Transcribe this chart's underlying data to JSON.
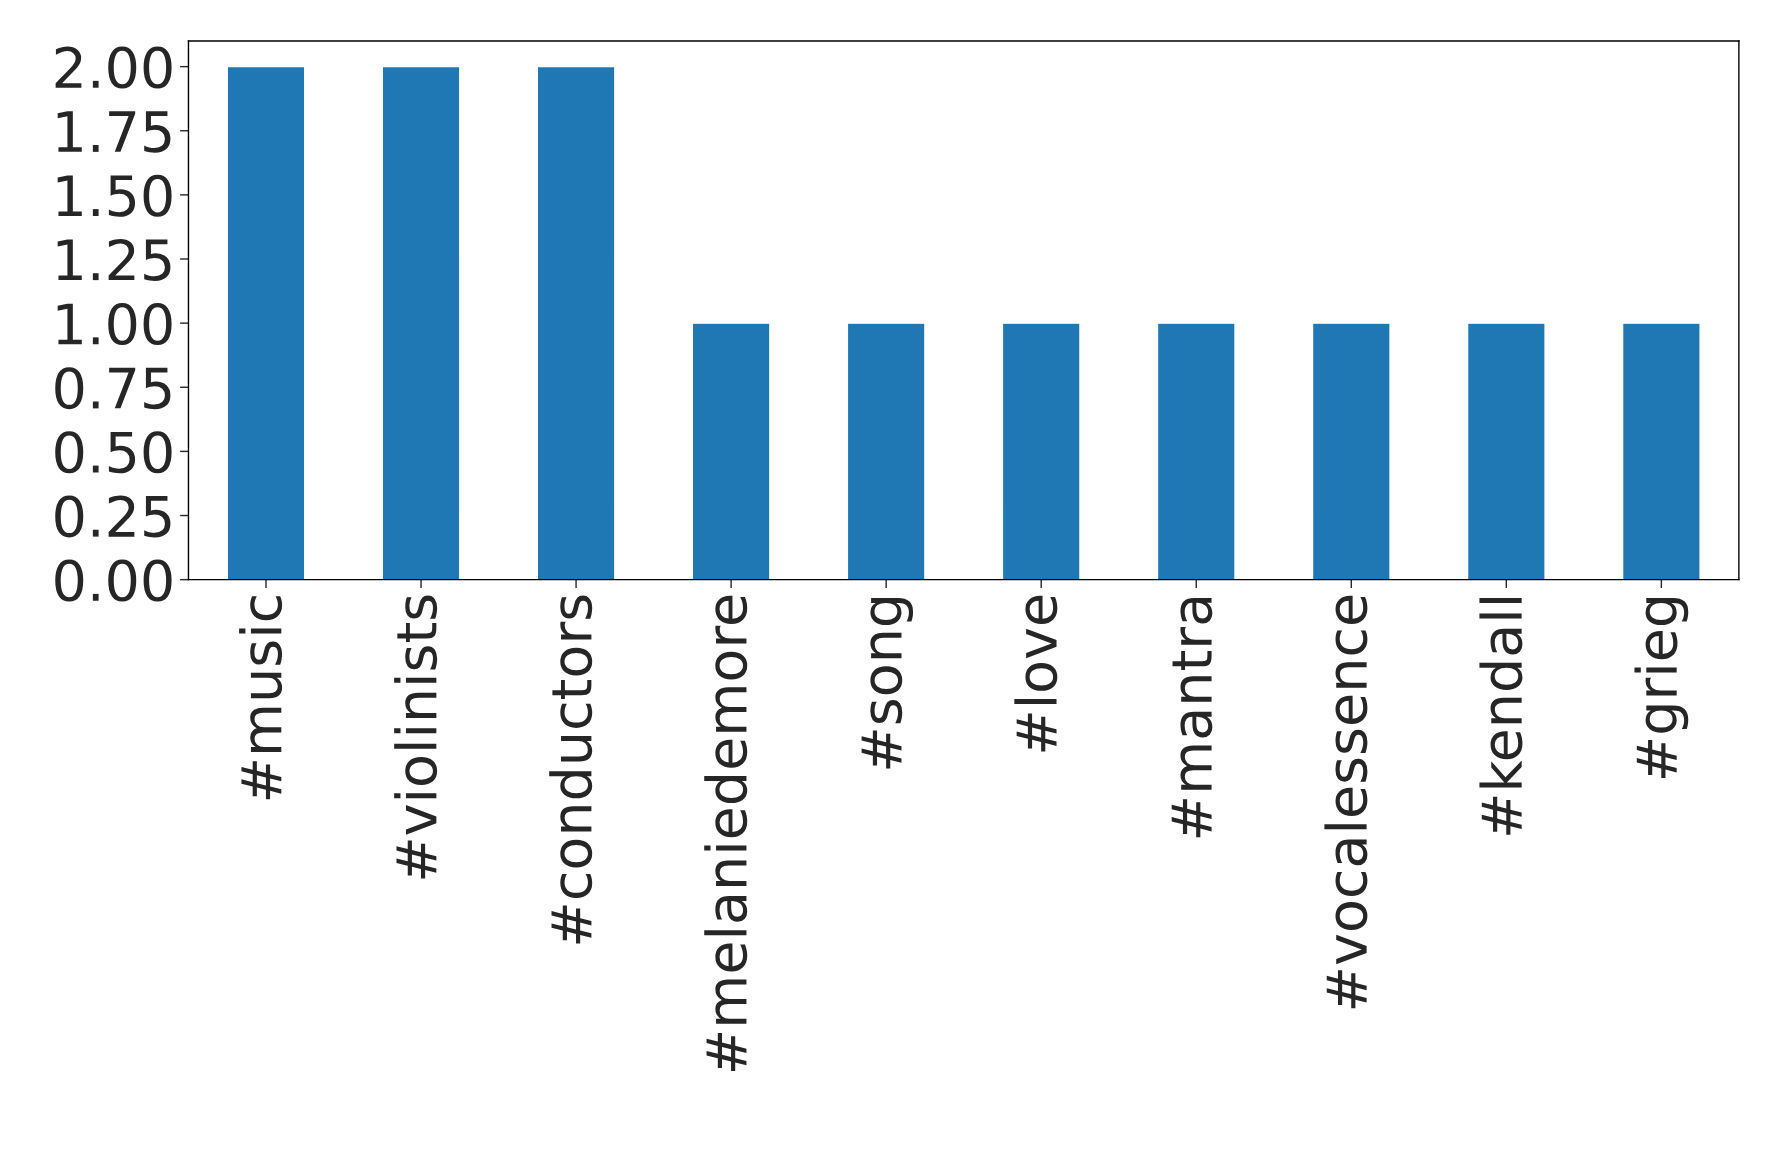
{
  "chart_data": {
    "type": "bar",
    "categories": [
      "#music",
      "#violinists",
      "#conductors",
      "#melaniedemore",
      "#song",
      "#love",
      "#mantra",
      "#vocalessence",
      "#kendall",
      "#grieg"
    ],
    "values": [
      2,
      2,
      2,
      1,
      1,
      1,
      1,
      1,
      1,
      1
    ],
    "color": "#1f77b4",
    "ylim": [
      0,
      2.1
    ],
    "yticks": [
      {
        "value": 0,
        "label": "0.00"
      },
      {
        "value": 0.25,
        "label": "0.25"
      },
      {
        "value": 0.5,
        "label": "0.50"
      },
      {
        "value": 0.75,
        "label": "0.75"
      },
      {
        "value": 1,
        "label": "1.00"
      },
      {
        "value": 1.25,
        "label": "1.25"
      },
      {
        "value": 1.5,
        "label": "1.50"
      },
      {
        "value": 1.75,
        "label": "1.75"
      },
      {
        "value": 2,
        "label": "2.00"
      }
    ],
    "grid": false,
    "legend": false
  }
}
